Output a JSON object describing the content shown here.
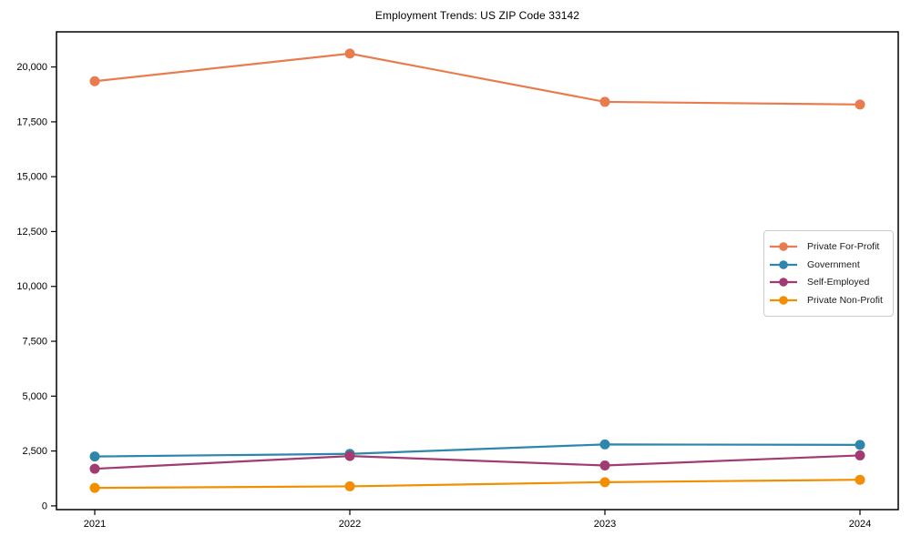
{
  "chart": {
    "title": "Employment Trends: US ZIP Code 33142"
  },
  "chart_data": {
    "type": "line",
    "title": "Employment Trends: US ZIP Code 33142",
    "xlabel": "",
    "ylabel": "",
    "x": [
      2021,
      2022,
      2023,
      2024
    ],
    "x_tick_labels": [
      "2021",
      "2022",
      "2023",
      "2024"
    ],
    "xlim": [
      2020.85,
      2024.15
    ],
    "ylim": [
      -170,
      21600
    ],
    "y_ticks": [
      {
        "value": 0,
        "label": "0"
      },
      {
        "value": 2500,
        "label": "2,500"
      },
      {
        "value": 5000,
        "label": "5,000"
      },
      {
        "value": 7500,
        "label": "7,500"
      },
      {
        "value": 10000,
        "label": "10,000"
      },
      {
        "value": 12500,
        "label": "12,500"
      },
      {
        "value": 15000,
        "label": "15,000"
      },
      {
        "value": 17500,
        "label": "17,500"
      },
      {
        "value": 20000,
        "label": "20,000"
      }
    ],
    "grid": false,
    "legend_position": "center-right",
    "series": [
      {
        "name": "Private For-Profit",
        "color": "#E97C4F",
        "values": [
          19350,
          20610,
          18410,
          18290
        ]
      },
      {
        "name": "Government",
        "color": "#2E86AB",
        "values": [
          2250,
          2370,
          2800,
          2780
        ]
      },
      {
        "name": "Self-Employed",
        "color": "#A23B72",
        "values": [
          1690,
          2270,
          1840,
          2300
        ]
      },
      {
        "name": "Private Non-Profit",
        "color": "#F18F01",
        "values": [
          820,
          890,
          1080,
          1190
        ]
      }
    ]
  }
}
